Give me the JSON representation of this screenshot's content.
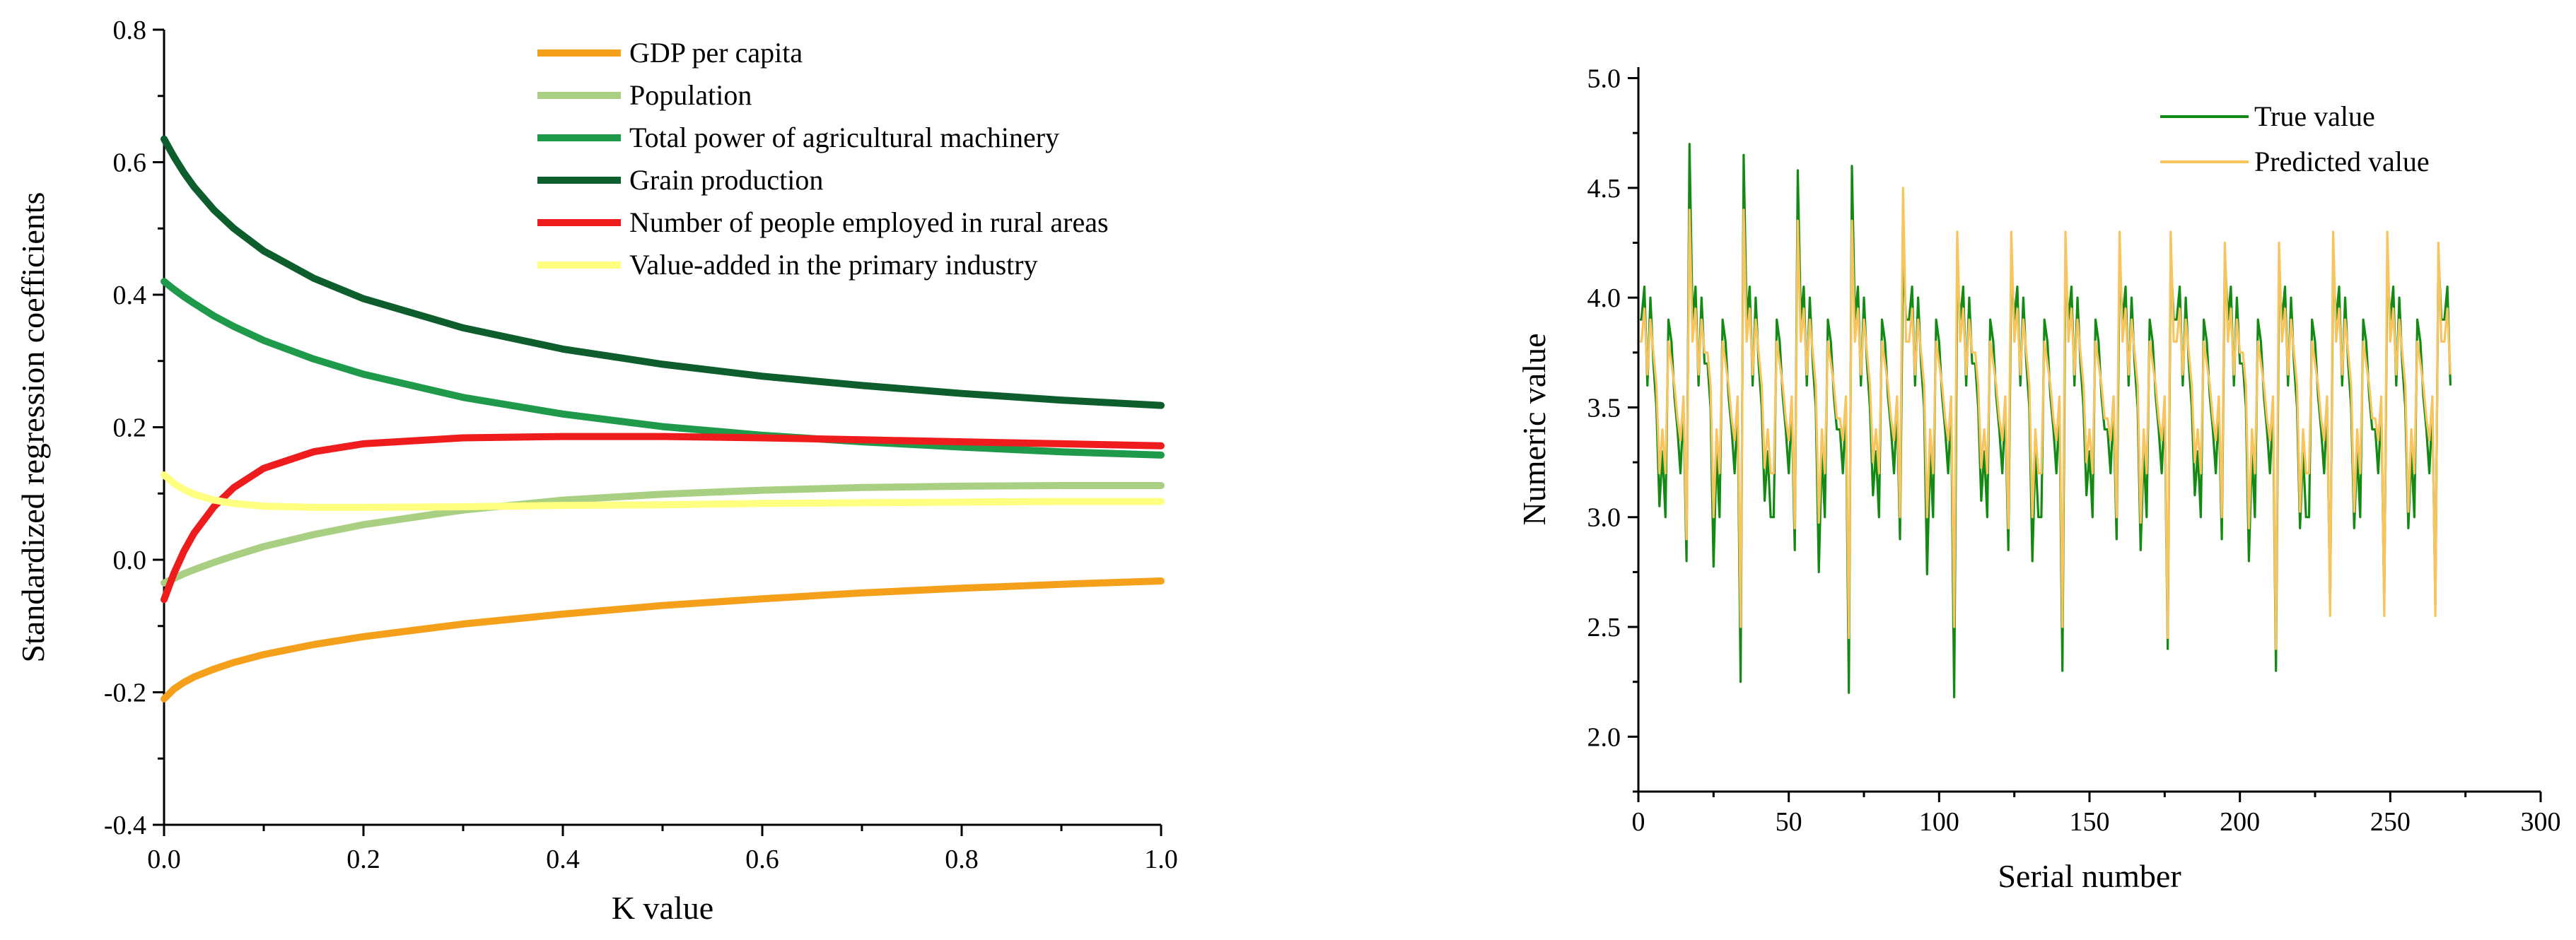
{
  "chart_data": [
    {
      "type": "line",
      "title": "",
      "xlabel": "K value",
      "ylabel": "Standardized regression coefficients",
      "xlim": [
        0.0,
        1.0
      ],
      "ylim": [
        -0.4,
        0.8
      ],
      "x_ticks": [
        "0.0",
        "0.2",
        "0.4",
        "0.6",
        "0.8",
        "1.0"
      ],
      "y_ticks": [
        "-0.4",
        "-0.2",
        "0.0",
        "0.2",
        "0.4",
        "0.6",
        "0.8"
      ],
      "legend_position": "top-center",
      "x": [
        0.0,
        0.01,
        0.02,
        0.03,
        0.05,
        0.07,
        0.1,
        0.15,
        0.2,
        0.3,
        0.4,
        0.5,
        0.6,
        0.7,
        0.8,
        0.9,
        1.0
      ],
      "series": [
        {
          "name": "GDP per capita",
          "color": "#f5a01a",
          "values": [
            -0.21,
            -0.195,
            -0.185,
            -0.177,
            -0.165,
            -0.155,
            -0.143,
            -0.128,
            -0.116,
            -0.097,
            -0.082,
            -0.069,
            -0.059,
            -0.05,
            -0.043,
            -0.037,
            -0.032
          ]
        },
        {
          "name": "Population",
          "color": "#a9cf82",
          "values": [
            -0.035,
            -0.028,
            -0.021,
            -0.015,
            -0.004,
            0.006,
            0.02,
            0.038,
            0.053,
            0.075,
            0.09,
            0.099,
            0.105,
            0.109,
            0.111,
            0.112,
            0.112
          ]
        },
        {
          "name": "Total power of agricultural machinery",
          "color": "#1f9a4a",
          "values": [
            0.42,
            0.408,
            0.397,
            0.387,
            0.368,
            0.352,
            0.331,
            0.303,
            0.28,
            0.245,
            0.22,
            0.201,
            0.188,
            0.178,
            0.17,
            0.163,
            0.158
          ]
        },
        {
          "name": "Grain production",
          "color": "#0d5e2c",
          "values": [
            0.635,
            0.608,
            0.584,
            0.563,
            0.528,
            0.5,
            0.466,
            0.425,
            0.394,
            0.35,
            0.318,
            0.295,
            0.277,
            0.263,
            0.251,
            0.241,
            0.233
          ]
        },
        {
          "name": "Number of people employed in rural areas",
          "color": "#ee1c1c",
          "values": [
            -0.06,
            -0.02,
            0.013,
            0.04,
            0.08,
            0.109,
            0.138,
            0.163,
            0.175,
            0.184,
            0.186,
            0.186,
            0.184,
            0.181,
            0.178,
            0.175,
            0.172
          ]
        },
        {
          "name": "Value-added in the primary industry",
          "color": "#ffff80",
          "values": [
            0.128,
            0.115,
            0.106,
            0.099,
            0.09,
            0.085,
            0.081,
            0.079,
            0.079,
            0.08,
            0.082,
            0.083,
            0.085,
            0.086,
            0.087,
            0.088,
            0.088
          ]
        }
      ]
    },
    {
      "type": "line",
      "title": "",
      "xlabel": "Serial number",
      "ylabel": "Numeric value",
      "xlim": [
        0,
        300
      ],
      "ylim": [
        1.75,
        5.05
      ],
      "x_ticks": [
        "0",
        "50",
        "100",
        "150",
        "200",
        "250",
        "300"
      ],
      "y_ticks": [
        "2.0",
        "2.5",
        "3.0",
        "3.5",
        "4.0",
        "4.5",
        "5.0"
      ],
      "legend_position": "top-right",
      "cycle_length": 17.8,
      "x_max": 270,
      "series": [
        {
          "name": "True value",
          "color": "#138a13",
          "pattern": [
            3.9,
            4.05,
            3.6,
            4.0,
            3.7,
            3.5,
            3.1,
            3.3,
            3.0,
            3.9,
            3.8,
            3.55,
            3.4,
            3.2,
            3.5,
            2.4,
            4.55
          ],
          "minima": [
            2.8,
            2.25,
            2.85,
            2.2,
            2.9,
            2.18,
            2.85,
            2.3,
            2.9,
            2.4,
            2.9,
            2.3,
            2.6,
            2.6,
            2.6,
            2.4,
            2.25,
            2.0,
            2.1,
            2.05
          ],
          "maxima": [
            4.7,
            4.65,
            4.58,
            4.6,
            4.2,
            4.1,
            4.15,
            4.15,
            4.15,
            4.2,
            4.2,
            4.1,
            4.15,
            4.15,
            4.2,
            4.2,
            4.15,
            4.18,
            4.15,
            4.15
          ]
        },
        {
          "name": "Predicted value",
          "color": "#f7c45e",
          "pattern": [
            3.8,
            3.95,
            3.65,
            3.9,
            3.75,
            3.6,
            3.3,
            3.4,
            3.2,
            3.8,
            3.7,
            3.6,
            3.45,
            3.35,
            3.55,
            2.6,
            4.3
          ],
          "minima": [
            2.9,
            2.5,
            2.95,
            2.45,
            3.0,
            2.5,
            2.95,
            2.5,
            3.0,
            2.45,
            3.0,
            2.4,
            2.55,
            2.55,
            2.55,
            2.5,
            2.5,
            2.55,
            2.5,
            2.55
          ],
          "maxima": [
            4.4,
            4.4,
            4.35,
            4.35,
            4.5,
            4.3,
            4.3,
            4.3,
            4.3,
            4.3,
            4.25,
            4.25,
            4.3,
            4.3,
            4.25,
            4.25,
            4.1,
            4.1,
            4.1,
            4.1
          ]
        }
      ]
    }
  ]
}
